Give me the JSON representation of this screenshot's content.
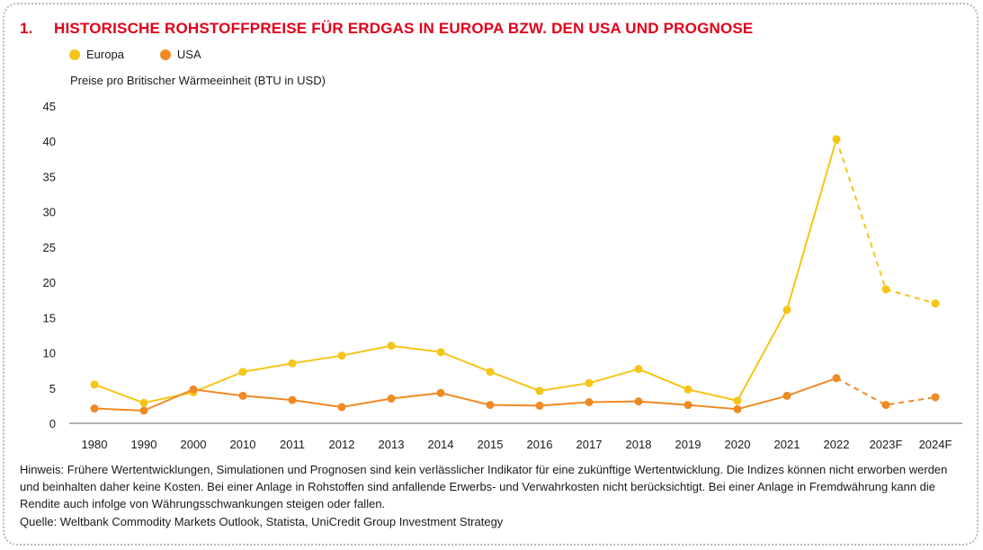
{
  "title": {
    "number": "1.",
    "text": "HISTORISCHE ROHSTOFFPREISE FÜR ERDGAS IN EUROPA BZW. DEN USA UND PROGNOSE"
  },
  "colors": {
    "europa": "#f5c518",
    "usa": "#f08a24",
    "title": "#e2001a",
    "axis": "#999999"
  },
  "legend": [
    {
      "label": "Europa",
      "color": "#f5c518"
    },
    {
      "label": "USA",
      "color": "#f08a24"
    }
  ],
  "chart_data": {
    "type": "line",
    "ylabel": "Preise pro Britischer Wärmeeinheit (BTU in USD)",
    "xlabel": "",
    "ylim": [
      0,
      45
    ],
    "yticks": [
      0,
      5,
      10,
      15,
      20,
      25,
      30,
      35,
      40,
      45
    ],
    "grid": false,
    "legend_position": "top-left",
    "categories": [
      "1980",
      "1990",
      "2000",
      "2010",
      "2011",
      "2012",
      "2013",
      "2014",
      "2015",
      "2016",
      "2017",
      "2018",
      "2019",
      "2020",
      "2021",
      "2022",
      "2023F",
      "2024F"
    ],
    "forecast_from_index": 15,
    "series": [
      {
        "name": "Europa",
        "color": "#f5c518",
        "values": [
          5.5,
          2.9,
          4.4,
          7.3,
          8.5,
          9.6,
          11.0,
          10.1,
          7.3,
          4.6,
          5.7,
          7.7,
          4.8,
          3.2,
          16.1,
          40.3,
          19.0,
          17.0
        ]
      },
      {
        "name": "USA",
        "color": "#f08a24",
        "values": [
          2.1,
          1.8,
          4.8,
          3.9,
          3.3,
          2.3,
          3.5,
          4.3,
          2.6,
          2.5,
          3.0,
          3.1,
          2.6,
          2.0,
          3.9,
          6.4,
          2.6,
          3.7
        ]
      }
    ]
  },
  "note": "Hinweis: Frühere Wertentwicklungen, Simulationen und Prognosen sind kein verlässlicher Indikator für eine zukünftige Wertentwicklung. Die Indizes können nicht erworben werden und beinhalten daher keine Kosten. Bei einer Anlage in Rohstoffen sind anfallende Erwerbs- und Verwahrkosten nicht berücksichtigt. Bei einer Anlage in Fremdwährung kann die Rendite auch infolge von Währungsschwankungen steigen oder fallen.",
  "source": "Quelle: Weltbank Commodity Markets Outlook, Statista, UniCredit Group Investment Strategy"
}
